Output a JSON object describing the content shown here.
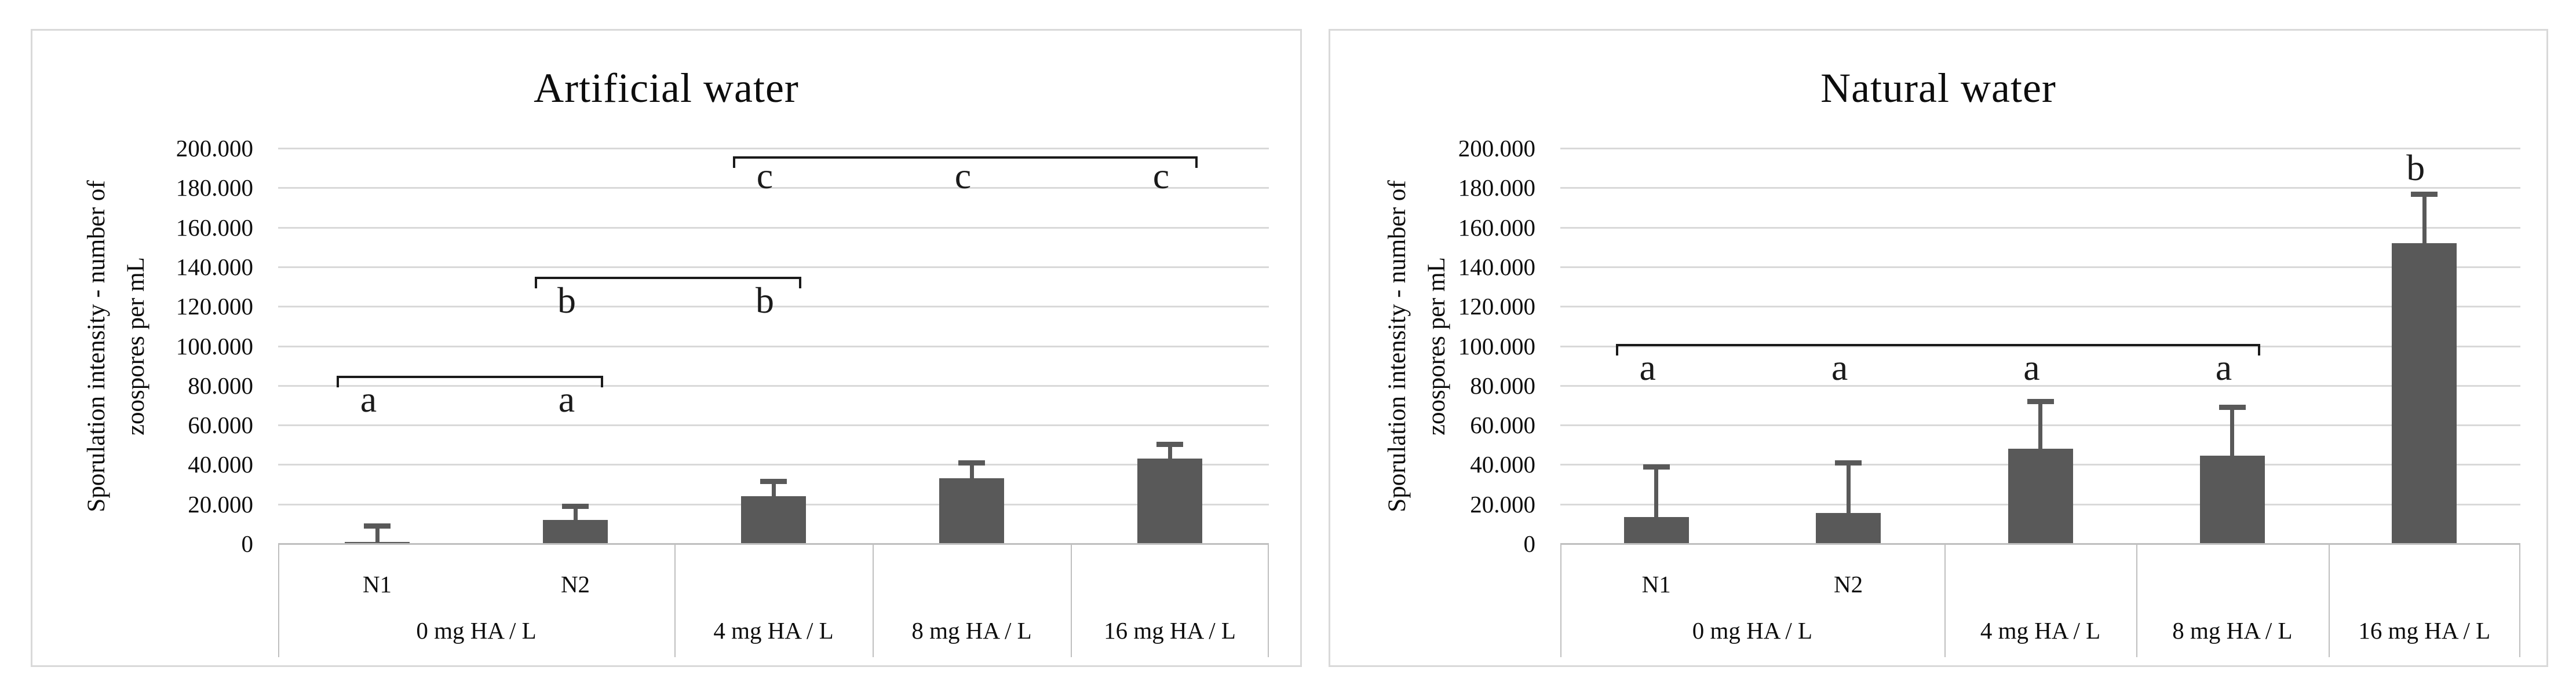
{
  "chart_data": [
    {
      "type": "bar",
      "title": "Artificial water",
      "ylabel_line1": "Sporulation intensity - number of",
      "ylabel_line2": "zoospores per mL",
      "ylim": [
        0,
        200000
      ],
      "ytick_step": 20000,
      "ytick_labels": [
        "0",
        "20.000",
        "40.000",
        "60.000",
        "80.000",
        "100.000",
        "120.000",
        "140.000",
        "160.000",
        "180.000",
        "200.000"
      ],
      "grid": true,
      "legend": "none",
      "categories": [
        "N1",
        "N2",
        "4 mg HA / L",
        "8 mg HA / L",
        "16 mg HA / L"
      ],
      "sub_labels": [
        "N1",
        "N2"
      ],
      "group_labels": [
        "0 mg HA / L",
        "4 mg HA / L",
        "8 mg HA / L",
        "16 mg HA / L"
      ],
      "values": [
        1000,
        12000,
        24000,
        33000,
        43000
      ],
      "error_tops": [
        9000,
        19000,
        31500,
        41000,
        50500
      ],
      "significance": [
        {
          "letter": "a",
          "bracket": true,
          "span": [
            0,
            1
          ],
          "members": [
            0,
            1
          ],
          "line_value": 85000,
          "letter_value": 73000
        },
        {
          "letter": "b",
          "bracket": true,
          "span": [
            1,
            2
          ],
          "members": [
            1,
            2
          ],
          "line_value": 135000,
          "letter_value": 123000
        },
        {
          "letter": "c",
          "bracket": true,
          "span": [
            2,
            4
          ],
          "members": [
            2,
            3,
            4
          ],
          "line_value": 196000,
          "letter_value": 186000
        }
      ],
      "bar_color": "#595959"
    },
    {
      "type": "bar",
      "title": "Natural water",
      "ylabel_line1": "Sporulation intensity - number of",
      "ylabel_line2": "zoospores per mL",
      "ylim": [
        0,
        200000
      ],
      "ytick_step": 20000,
      "ytick_labels": [
        "0",
        "20.000",
        "40.000",
        "60.000",
        "80.000",
        "100.000",
        "120.000",
        "140.000",
        "160.000",
        "180.000",
        "200.000"
      ],
      "grid": true,
      "legend": "none",
      "categories": [
        "N1",
        "N2",
        "4 mg HA / L",
        "8 mg HA / L",
        "16 mg HA / L"
      ],
      "sub_labels": [
        "N1",
        "N2"
      ],
      "group_labels": [
        "0 mg HA / L",
        "4 mg HA / L",
        "8 mg HA / L",
        "16 mg HA / L"
      ],
      "values": [
        13500,
        15500,
        48000,
        44500,
        152000
      ],
      "error_tops": [
        39000,
        41000,
        72000,
        69000,
        177000
      ],
      "significance": [
        {
          "letter": "a",
          "bracket": true,
          "span": [
            0,
            3
          ],
          "members": [
            0,
            1,
            2,
            3
          ],
          "line_value": 101000,
          "letter_value": 89000
        },
        {
          "letter": "b",
          "bracket": false,
          "members": [
            4
          ],
          "letter_value": 190000
        }
      ],
      "bar_color": "#595959"
    }
  ],
  "colors": {
    "bar": "#595959",
    "error_bar": "#595959",
    "gridline": "#d9d9d9",
    "axis_line": "#bfbfbf",
    "frame": "#d9d9d9",
    "text": "#0d0d0d",
    "annotation": "#1a1a1a",
    "background": "#ffffff"
  }
}
